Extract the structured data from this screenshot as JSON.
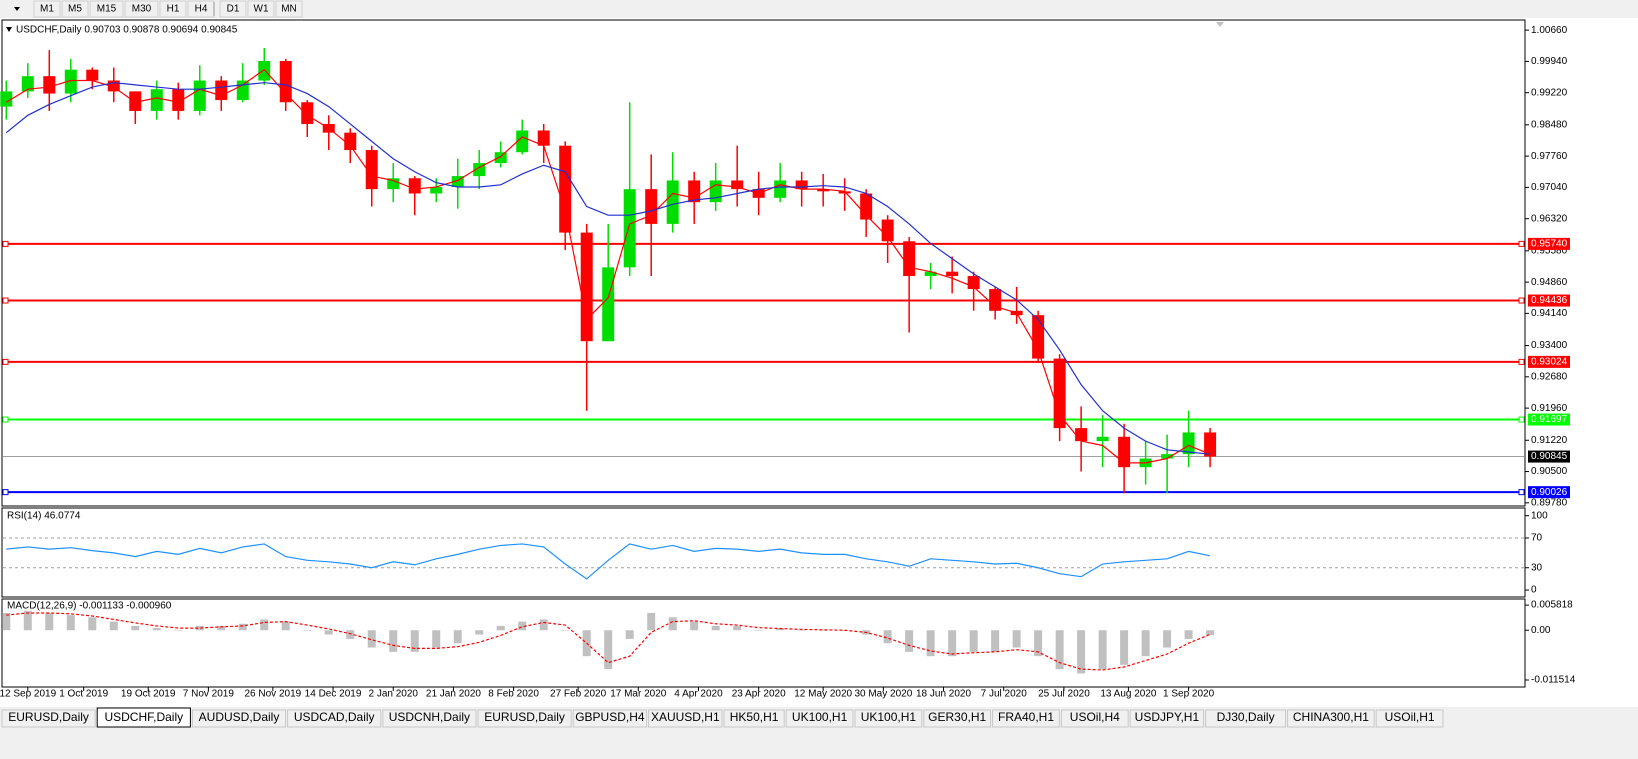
{
  "toolbar": [
    "M1",
    "M5",
    "M15",
    "M30",
    "H1",
    "H4",
    "D1",
    "W1",
    "MN"
  ],
  "tabs": [
    "EURUSD,Daily",
    "USDCHF,Daily",
    "AUDUSD,Daily",
    "USDCAD,Daily",
    "USDCNH,Daily",
    "EURUSD,Daily",
    "GBPUSD,H4",
    "XAUUSD,H1",
    "HK50,H1",
    "UK100,H1",
    "UK100,H1",
    "GER30,H1",
    "FRA40,H1",
    "USOil,H4",
    "USDJPY,H1",
    "DJ30,Daily",
    "CHINA300,H1",
    "USOil,H1"
  ],
  "active_tab": 1,
  "chart_data": [
    {
      "type": "candlestick",
      "title": "USDCHF,Daily  0.90703 0.90878 0.90694 0.90845",
      "up_color": "#00dd00",
      "down_color": "#ff0000",
      "x": [
        1,
        6,
        11,
        16,
        21,
        26,
        31,
        36,
        41,
        46,
        51,
        56,
        61,
        66,
        71,
        76,
        81,
        86,
        91,
        96,
        101,
        106,
        111,
        116,
        121,
        126,
        131,
        136,
        141,
        146,
        151,
        156,
        161,
        166,
        171,
        176,
        181,
        186,
        191,
        196,
        201,
        206,
        211,
        216,
        221,
        226,
        231,
        236,
        241,
        246,
        251,
        256,
        261,
        266,
        271,
        276,
        281
      ],
      "open": [
        0.989,
        0.9925,
        0.996,
        0.992,
        0.9975,
        0.995,
        0.9925,
        0.988,
        0.993,
        0.988,
        0.995,
        0.9905,
        0.995,
        0.9995,
        0.99,
        0.985,
        0.983,
        0.979,
        0.97,
        0.9725,
        0.969,
        0.9705,
        0.973,
        0.976,
        0.9785,
        0.9835,
        0.98,
        0.96,
        0.935,
        0.952,
        0.97,
        0.962,
        0.972,
        0.967,
        0.972,
        0.97,
        0.968,
        0.972,
        0.97,
        0.9695,
        0.969,
        0.963,
        0.958,
        0.95,
        0.951,
        0.95,
        0.947,
        0.942,
        0.941,
        0.931,
        0.915,
        0.912,
        0.913,
        0.906,
        0.908,
        0.909,
        0.914
      ],
      "high": [
        0.995,
        0.999,
        1.002,
        1.0,
        0.998,
        0.998,
        0.9925,
        0.995,
        0.9945,
        0.9985,
        0.996,
        0.999,
        1.0025,
        1.0,
        0.9905,
        0.987,
        0.984,
        0.98,
        0.976,
        0.973,
        0.9725,
        0.977,
        0.979,
        0.981,
        0.986,
        0.985,
        0.981,
        0.962,
        0.962,
        0.99,
        0.978,
        0.9785,
        0.974,
        0.976,
        0.98,
        0.974,
        0.976,
        0.974,
        0.9735,
        0.9725,
        0.97,
        0.964,
        0.959,
        0.953,
        0.9545,
        0.951,
        0.9475,
        0.9475,
        0.942,
        0.932,
        0.92,
        0.918,
        0.916,
        0.912,
        0.9135,
        0.919,
        0.915
      ],
      "low": [
        0.986,
        0.991,
        0.988,
        0.99,
        0.993,
        0.99,
        0.985,
        0.986,
        0.986,
        0.987,
        0.988,
        0.99,
        0.994,
        0.988,
        0.982,
        0.979,
        0.976,
        0.966,
        0.967,
        0.964,
        0.967,
        0.9655,
        0.97,
        0.975,
        0.978,
        0.976,
        0.956,
        0.919,
        0.935,
        0.95,
        0.95,
        0.96,
        0.962,
        0.965,
        0.966,
        0.964,
        0.967,
        0.966,
        0.966,
        0.965,
        0.959,
        0.953,
        0.937,
        0.947,
        0.946,
        0.942,
        0.94,
        0.939,
        0.93,
        0.912,
        0.905,
        0.906,
        0.9,
        0.902,
        0.9,
        0.906,
        0.906
      ],
      "close": [
        0.9925,
        0.996,
        0.992,
        0.9975,
        0.995,
        0.9925,
        0.988,
        0.993,
        0.988,
        0.995,
        0.9905,
        0.995,
        0.9995,
        0.99,
        0.985,
        0.983,
        0.979,
        0.97,
        0.9725,
        0.969,
        0.9705,
        0.973,
        0.976,
        0.9785,
        0.9835,
        0.98,
        0.96,
        0.935,
        0.952,
        0.97,
        0.962,
        0.972,
        0.967,
        0.972,
        0.97,
        0.968,
        0.972,
        0.97,
        0.9695,
        0.969,
        0.963,
        0.958,
        0.95,
        0.951,
        0.95,
        0.947,
        0.942,
        0.941,
        0.931,
        0.915,
        0.912,
        0.913,
        0.906,
        0.908,
        0.909,
        0.914,
        0.90845
      ],
      "series": [
        {
          "color": "#ff0000",
          "values": [
            0.99,
            0.993,
            0.9935,
            0.995,
            0.995,
            0.9935,
            0.99,
            0.991,
            0.99,
            0.993,
            0.9915,
            0.994,
            0.9975,
            0.992,
            0.987,
            0.984,
            0.98,
            0.973,
            0.972,
            0.97,
            0.9705,
            0.972,
            0.975,
            0.9775,
            0.982,
            0.98,
            0.965,
            0.94,
            0.945,
            0.962,
            0.964,
            0.969,
            0.968,
            0.971,
            0.9705,
            0.969,
            0.971,
            0.97,
            0.97,
            0.9695,
            0.964,
            0.959,
            0.952,
            0.951,
            0.9495,
            0.9475,
            0.943,
            0.9415,
            0.933,
            0.918,
            0.912,
            0.911,
            0.907,
            0.907,
            0.908,
            0.911,
            0.909
          ]
        },
        {
          "color": "#2030d0",
          "values": [
            0.983,
            0.987,
            0.9895,
            0.9915,
            0.9935,
            0.9945,
            0.994,
            0.9935,
            0.993,
            0.993,
            0.9935,
            0.994,
            0.9945,
            0.994,
            0.992,
            0.989,
            0.985,
            0.981,
            0.977,
            0.974,
            0.9715,
            0.9705,
            0.9705,
            0.971,
            0.9735,
            0.9755,
            0.974,
            0.966,
            0.964,
            0.964,
            0.965,
            0.9665,
            0.9675,
            0.968,
            0.969,
            0.97,
            0.9705,
            0.9705,
            0.9708,
            0.9705,
            0.969,
            0.966,
            0.962,
            0.9575,
            0.954,
            0.9505,
            0.9475,
            0.9445,
            0.94,
            0.933,
            0.925,
            0.919,
            0.915,
            0.912,
            0.91,
            0.9095,
            0.909
          ]
        }
      ],
      "xlim": [
        0,
        284
      ],
      "xticks": [
        {
          "value": 6,
          "label": "12 Sep 2019"
        },
        {
          "value": 19,
          "label": "1 Oct 2019"
        },
        {
          "value": 34,
          "label": "19 Oct 2019"
        },
        {
          "value": 48,
          "label": "7 Nov 2019"
        },
        {
          "value": 63,
          "label": "26 Nov 2019"
        },
        {
          "value": 77,
          "label": "14 Dec 2019"
        },
        {
          "value": 91,
          "label": "2 Jan 2020"
        },
        {
          "value": 105,
          "label": "21 Jan 2020"
        },
        {
          "value": 119,
          "label": "8 Feb 2020"
        },
        {
          "value": 134,
          "label": "27 Feb 2020"
        },
        {
          "value": 148,
          "label": "17 Mar 2020"
        },
        {
          "value": 162,
          "label": "4 Apr 2020"
        },
        {
          "value": 176,
          "label": "23 Apr 2020"
        },
        {
          "value": 191,
          "label": "12 May 2020"
        },
        {
          "value": 205,
          "label": "30 May 2020"
        },
        {
          "value": 219,
          "label": "18 Jun 2020"
        },
        {
          "value": 233,
          "label": "7 Jul 2020"
        },
        {
          "value": 247,
          "label": "25 Jul 2020"
        },
        {
          "value": 262,
          "label": "13 Aug 2020"
        },
        {
          "value": 276,
          "label": "1 Sep 2020"
        }
      ],
      "ylim": [
        0.8973,
        1.0087
      ],
      "yticks": [
        {
          "value": 1.0066,
          "label": "1.00660"
        },
        {
          "value": 0.9994,
          "label": "0.99940"
        },
        {
          "value": 0.9922,
          "label": "0.99220"
        },
        {
          "value": 0.9848,
          "label": "0.98480"
        },
        {
          "value": 0.9776,
          "label": "0.97760"
        },
        {
          "value": 0.9704,
          "label": "0.97040"
        },
        {
          "value": 0.9632,
          "label": "0.96320"
        },
        {
          "value": 0.9558,
          "label": "0.95580"
        },
        {
          "value": 0.9486,
          "label": "0.94860"
        },
        {
          "value": 0.9414,
          "label": "0.94140"
        },
        {
          "value": 0.934,
          "label": "0.93400"
        },
        {
          "value": 0.9268,
          "label": "0.92680"
        },
        {
          "value": 0.9196,
          "label": "0.91960"
        },
        {
          "value": 0.9122,
          "label": "0.91220"
        },
        {
          "value": 0.905,
          "label": "0.90500"
        },
        {
          "value": 0.8978,
          "label": "0.89780"
        }
      ],
      "hlines": [
        {
          "value": 0.9574,
          "label": "0.95740",
          "color": "#ff0000"
        },
        {
          "value": 0.94436,
          "label": "0.94436",
          "color": "#ff0000"
        },
        {
          "value": 0.93024,
          "label": "0.93024",
          "color": "#ff0000"
        },
        {
          "value": 0.91697,
          "label": "0.91697",
          "color": "#00ff00"
        },
        {
          "value": 0.90026,
          "label": "0.90026",
          "color": "#0000ff"
        }
      ],
      "current_price": {
        "value": 0.90845,
        "label": "0.90845"
      }
    },
    {
      "type": "line",
      "title": "RSI(14) 46.0774",
      "color": "#1e90ff",
      "values": [
        55,
        58,
        55,
        57,
        53,
        50,
        45,
        52,
        48,
        56,
        50,
        58,
        62,
        45,
        40,
        38,
        35,
        30,
        38,
        34,
        42,
        48,
        55,
        60,
        62,
        58,
        35,
        15,
        40,
        62,
        55,
        60,
        52,
        56,
        55,
        52,
        55,
        50,
        48,
        48,
        42,
        38,
        32,
        42,
        40,
        38,
        35,
        36,
        30,
        22,
        18,
        35,
        38,
        40,
        42,
        52,
        46.0774
      ],
      "ylim": [
        -8,
        109
      ],
      "yticks": [
        0,
        30,
        70,
        100
      ],
      "levels": [
        30,
        70
      ]
    },
    {
      "type": "macd",
      "title": "MACD(12,26,9) -0.001133 -0.000960",
      "color": "#c0c0c0",
      "values": [
        0.004,
        0.0045,
        0.004,
        0.0035,
        0.003,
        0.002,
        0.001,
        0.0005,
        0,
        0.001,
        0.001,
        0.0015,
        0.0025,
        0.002,
        0,
        -0.001,
        -0.002,
        -0.004,
        -0.005,
        -0.005,
        -0.004,
        -0.003,
        -0.001,
        0.001,
        0.002,
        0.0025,
        0,
        -0.006,
        -0.009,
        -0.002,
        0.004,
        0.003,
        0.002,
        0.001,
        0.001,
        0,
        0.0005,
        0,
        0,
        0,
        -0.001,
        -0.003,
        -0.005,
        -0.006,
        -0.006,
        -0.005,
        -0.005,
        -0.004,
        -0.006,
        -0.009,
        -0.01,
        -0.009,
        -0.008,
        -0.006,
        -0.004,
        -0.002,
        -0.001133
      ],
      "signal": {
        "color": "#ff0000",
        "values": [
          0.0035,
          0.004,
          0.004,
          0.0038,
          0.0033,
          0.0025,
          0.0017,
          0.001,
          0.0005,
          0.0005,
          0.0008,
          0.001,
          0.0018,
          0.002,
          0.0012,
          0.0003,
          -0.0008,
          -0.0022,
          -0.0035,
          -0.0042,
          -0.0042,
          -0.0038,
          -0.0028,
          -0.0012,
          0.0008,
          0.0018,
          0.0012,
          -0.003,
          -0.0075,
          -0.006,
          -0.0005,
          0.002,
          0.0022,
          0.0015,
          0.0012,
          0.0006,
          0.0004,
          0.0002,
          0.0001,
          0,
          -0.0005,
          -0.0018,
          -0.0035,
          -0.0048,
          -0.0055,
          -0.0052,
          -0.005,
          -0.0045,
          -0.005,
          -0.0075,
          -0.009,
          -0.0092,
          -0.0085,
          -0.007,
          -0.0055,
          -0.003,
          -0.00096
        ]
      },
      "ylim": [
        -0.0129,
        0.007
      ],
      "yticks": [
        0.005818,
        {
          "value": 0,
          "label": "0.00"
        },
        -0.011514
      ]
    }
  ]
}
